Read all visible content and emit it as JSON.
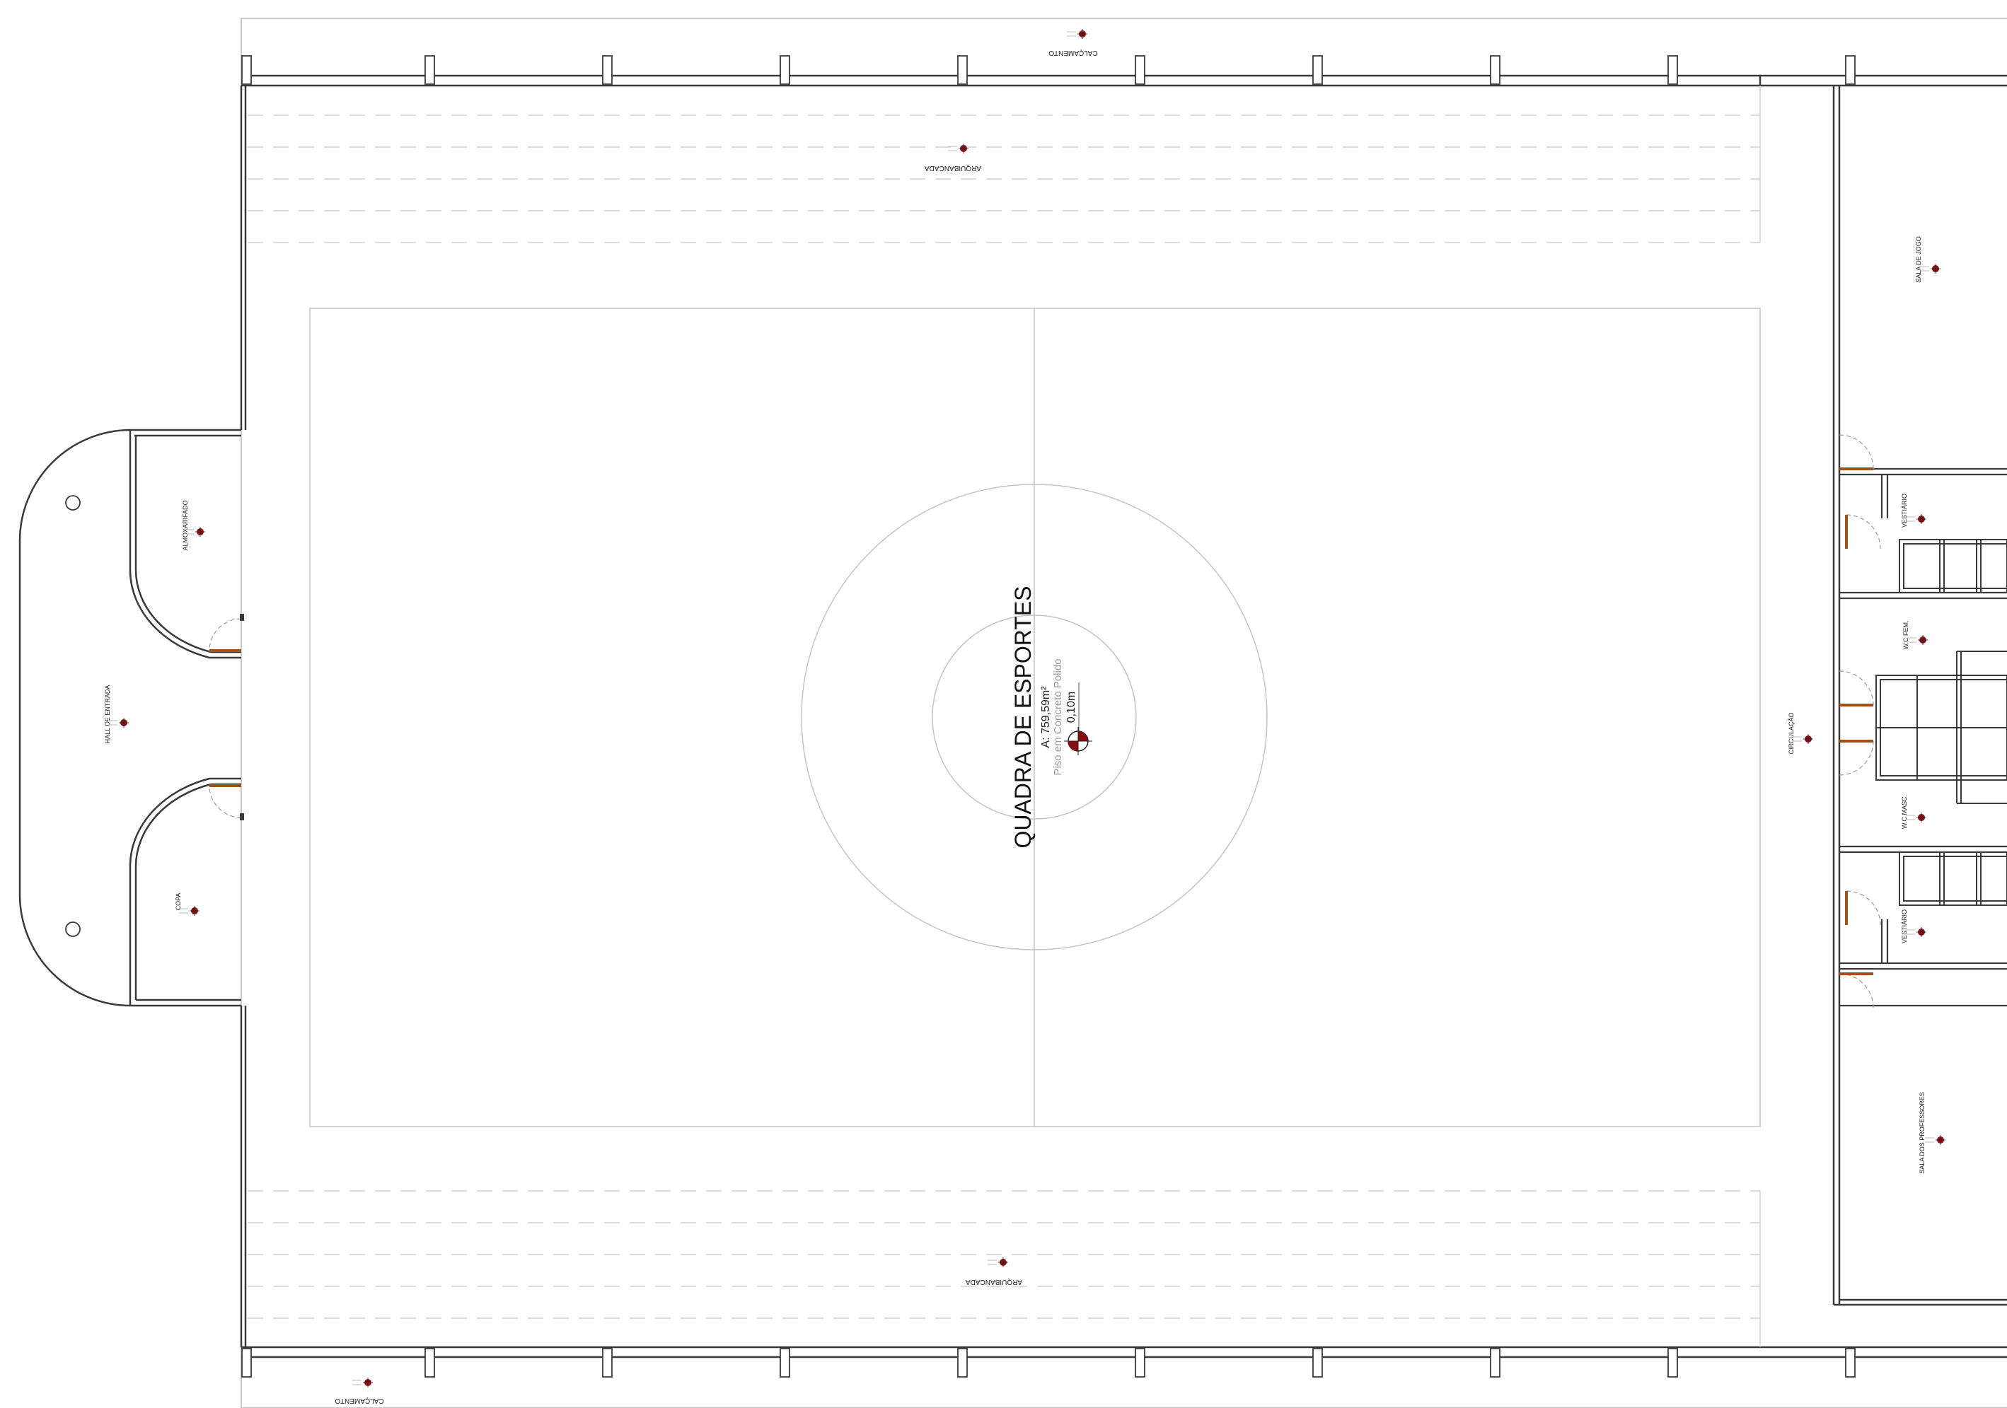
{
  "court": {
    "title": "QUADRA DE ESPORTES",
    "area": "A: 759,59m²",
    "floor": "Piso em Concreto Polido",
    "level": "0,10m"
  },
  "rooms": {
    "calcamento_top": "CALÇAMENTO",
    "calcamento_bottom": "CALÇAMENTO",
    "arquibancada_top": "ARQUIBANCADA",
    "arquibancada_bottom": "ARQUIBANCADA",
    "almoxarifado": "ALMOXARIFADO",
    "hall_entrada": "HALL DE ENTRADA",
    "copa": "COPA",
    "sala_de_jogo": "SALA DE JOGO",
    "vestiario_1": "VESTIÁRIO",
    "vestiario_2": "VESTIÁRIO",
    "wc_fem": "W.C FEM.",
    "wc_masc": "W.C MASC.",
    "circulacao": "CIRCULAÇÃO",
    "sala_professores": "SALA DOS PROFESSORES"
  },
  "colors": {
    "wall": "#3a3a3a",
    "thin_line": "#9a9a9a",
    "door_leaf": "#a0521e",
    "level_marker": "#8b0d12"
  },
  "icons": [
    "level-marker-icon",
    "room-tag-icon",
    "pillar-icon",
    "door-swing-icon"
  ]
}
